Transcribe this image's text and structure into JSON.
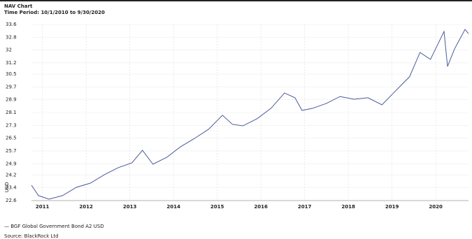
{
  "chart_data": {
    "type": "line",
    "title": "NAV Chart",
    "subtitle": "Time Period: 10/1/2010 to 9/30/2020",
    "y_label": "USD",
    "x": [
      2010.75,
      2010.91,
      2011.15,
      2011.46,
      2011.78,
      2012.1,
      2012.42,
      2012.73,
      2013.05,
      2013.29,
      2013.53,
      2013.85,
      2014.16,
      2014.48,
      2014.8,
      2015.12,
      2015.35,
      2015.59,
      2015.91,
      2016.23,
      2016.54,
      2016.78,
      2016.94,
      2017.18,
      2017.5,
      2017.81,
      2018.13,
      2018.45,
      2018.77,
      2019.08,
      2019.4,
      2019.64,
      2019.88,
      2020.19,
      2020.27,
      2020.43,
      2020.67,
      2020.75
    ],
    "series": [
      {
        "name": "— BGF Global Government Bond A2 USD",
        "color": "#4a5a9a",
        "values": [
          23.56,
          22.91,
          22.69,
          22.91,
          23.43,
          23.69,
          24.22,
          24.65,
          24.96,
          25.74,
          24.87,
          25.31,
          25.96,
          26.48,
          27.05,
          27.93,
          27.36,
          27.27,
          27.71,
          28.36,
          29.32,
          29.02,
          28.23,
          28.36,
          28.67,
          29.1,
          28.93,
          29.02,
          28.58,
          29.45,
          30.33,
          31.85,
          31.42,
          33.16,
          30.98,
          32.07,
          33.29,
          33.03
        ]
      }
    ],
    "xlim": [
      2010.75,
      2020.75
    ],
    "xticks": [
      2011,
      2012,
      2013,
      2014,
      2015,
      2016,
      2017,
      2018,
      2019,
      2020
    ],
    "ylim": [
      22.6,
      33.6
    ],
    "yticks": [
      22.6,
      23.4,
      24.2,
      24.9,
      25.7,
      26.5,
      27.3,
      28.1,
      28.9,
      29.7,
      30.5,
      31.2,
      32.0,
      32.8,
      33.6
    ],
    "grid": true,
    "source": "Source: BlackRock Ltd"
  }
}
